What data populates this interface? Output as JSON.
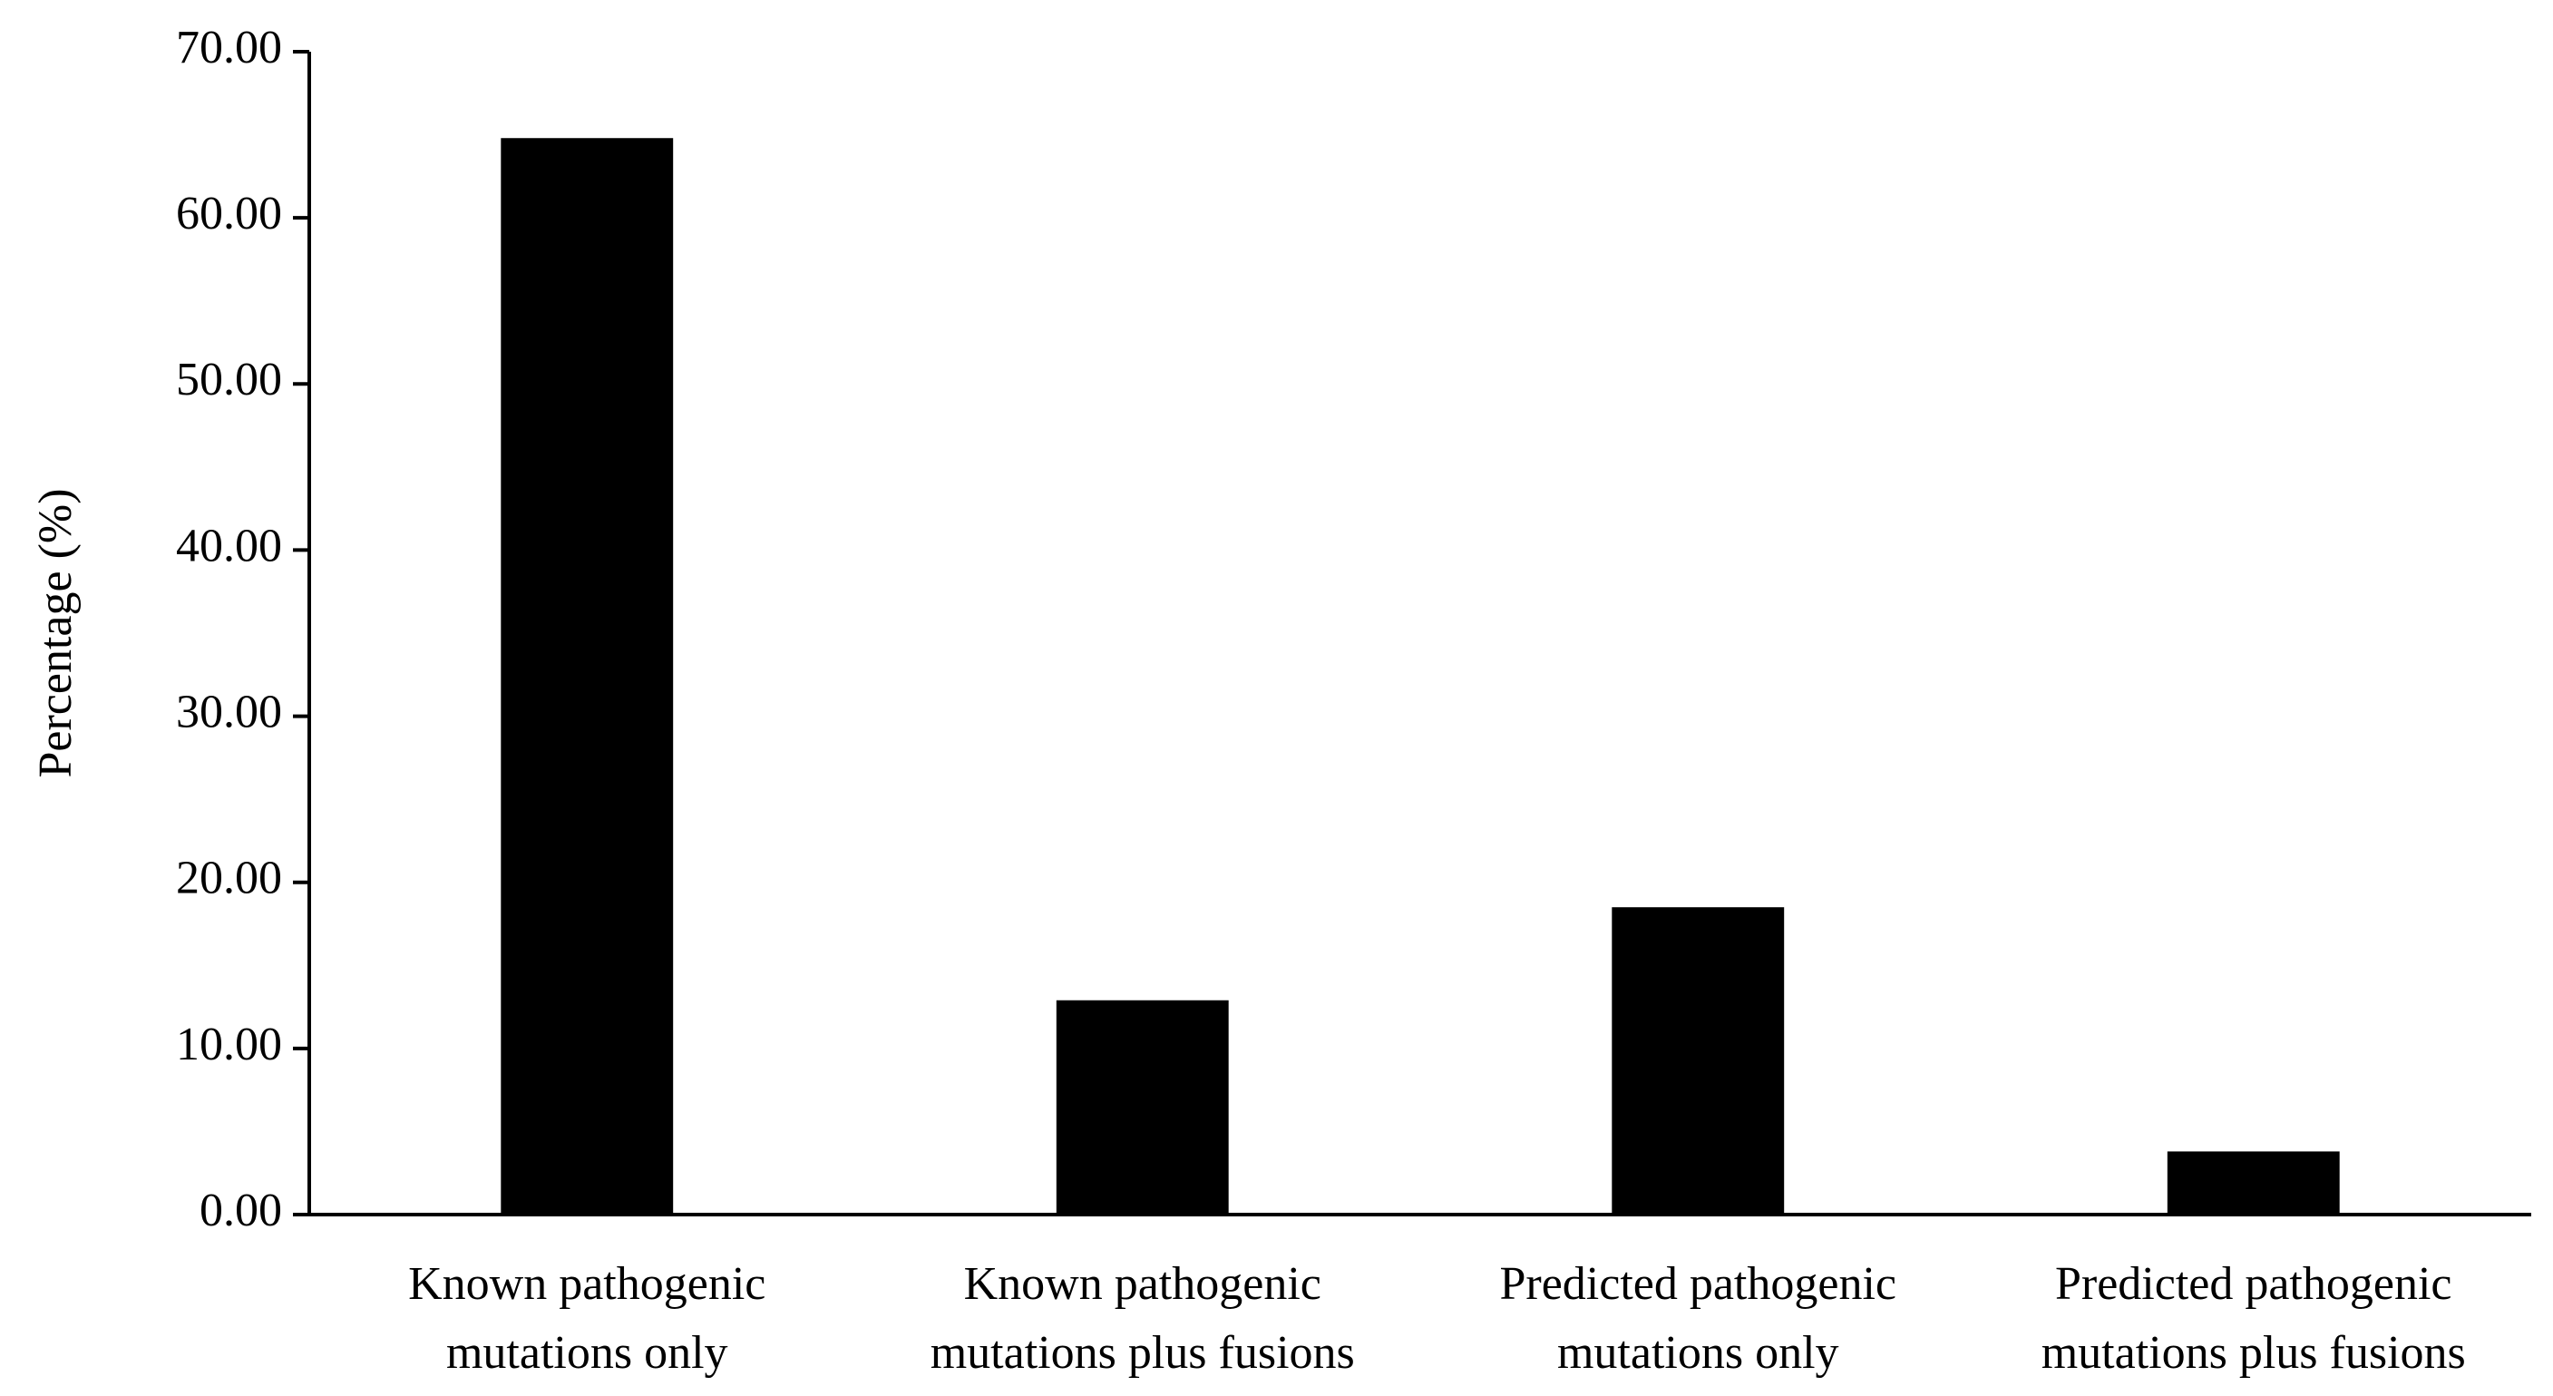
{
  "chart_data": {
    "type": "bar",
    "y_label": "Percentage (%)",
    "categories": [
      [
        "Known pathogenic",
        "mutations only"
      ],
      [
        "Known pathogenic",
        "mutations plus fusions"
      ],
      [
        "Predicted pathogenic",
        "mutations only"
      ],
      [
        "Predicted pathogenic",
        "mutations plus fusions"
      ]
    ],
    "values": [
      64.8,
      12.9,
      18.5,
      3.8
    ],
    "color": "#000000",
    "ylim": [
      0,
      70
    ],
    "yticks": [
      {
        "value": 0,
        "label": "0.00"
      },
      {
        "value": 10,
        "label": "10.00"
      },
      {
        "value": 20,
        "label": "20.00"
      },
      {
        "value": 30,
        "label": "30.00"
      },
      {
        "value": 40,
        "label": "40.00"
      },
      {
        "value": 50,
        "label": "50.00"
      },
      {
        "value": 60,
        "label": "60.00"
      },
      {
        "value": 70,
        "label": "70.00"
      }
    ],
    "grid": false
  }
}
